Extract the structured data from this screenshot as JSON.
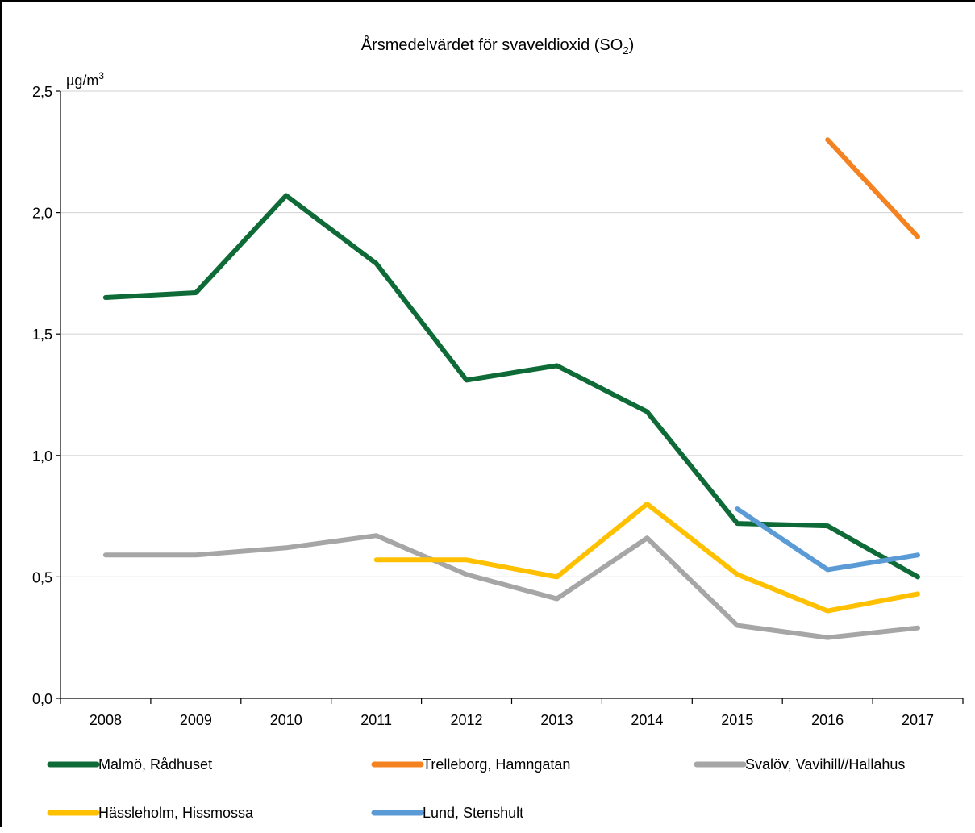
{
  "chart_data": {
    "type": "line",
    "title": "Årsmedelvärdet för svaveldioxid (SO",
    "title_sub": "2",
    "title_end": ")",
    "unit": "µg/m",
    "unit_sup": "3",
    "x": [
      "2008",
      "2009",
      "2010",
      "2011",
      "2012",
      "2013",
      "2014",
      "2015",
      "2016",
      "2017"
    ],
    "ylim": [
      0,
      2.5
    ],
    "yticks": [
      0.0,
      0.5,
      1.0,
      1.5,
      2.0,
      2.5
    ],
    "ytick_labels": [
      "0,0",
      "0,5",
      "1,0",
      "1,5",
      "2,0",
      "2,5"
    ],
    "grid": true,
    "legend_position": "bottom",
    "series": [
      {
        "name": "Malmö, Rådhuset",
        "color": "#0e6b37",
        "values": [
          1.65,
          1.67,
          2.07,
          1.79,
          1.31,
          1.37,
          1.18,
          0.72,
          0.71,
          0.5
        ]
      },
      {
        "name": "Trelleborg, Hamngatan",
        "color": "#f58220",
        "values": [
          null,
          null,
          null,
          null,
          null,
          null,
          null,
          null,
          2.3,
          1.9
        ]
      },
      {
        "name": "Svalöv, Vavihill//Hallahus",
        "color": "#a6a6a6",
        "values": [
          0.59,
          0.59,
          0.62,
          0.67,
          0.51,
          0.41,
          0.66,
          0.3,
          0.25,
          0.29
        ]
      },
      {
        "name": "Hässleholm, Hissmossa",
        "color": "#ffc000",
        "values": [
          null,
          null,
          null,
          0.57,
          0.57,
          0.5,
          0.8,
          0.51,
          0.36,
          0.43
        ]
      },
      {
        "name": "Lund, Stenshult",
        "color": "#5b9bd5",
        "values": [
          null,
          null,
          null,
          null,
          null,
          null,
          null,
          0.78,
          0.53,
          0.59
        ]
      }
    ]
  }
}
